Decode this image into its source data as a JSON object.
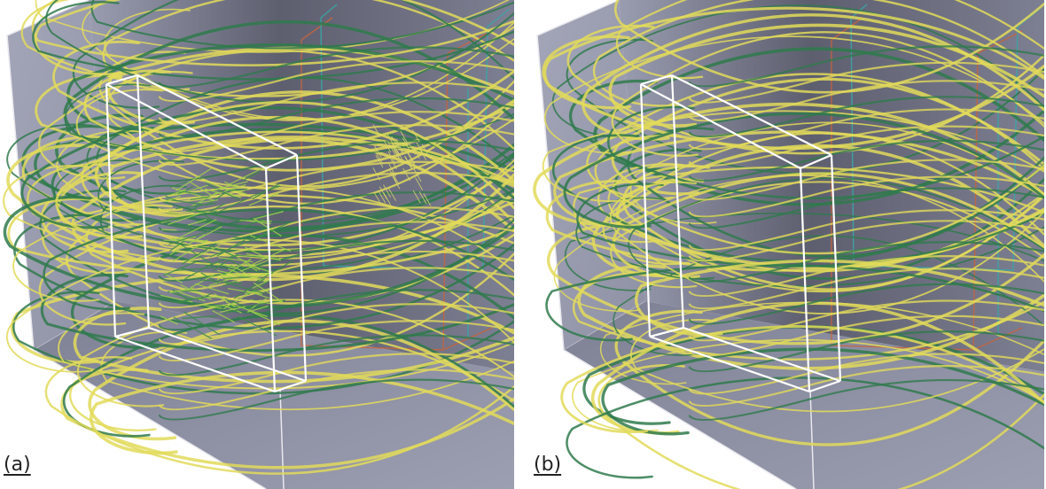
{
  "figure": {
    "panels": [
      {
        "label": "(a)",
        "variant": "dense"
      },
      {
        "label": "(b)",
        "variant": "sparse"
      }
    ],
    "colors": {
      "box_face": "#8f91a4",
      "box_edge": "#e8e8ee",
      "streamline_yellow": "#e2da5a",
      "streamline_green": "#2f7a4c",
      "inner_box_cyan": "#3aa6a6",
      "inner_box_orange": "#c8643c"
    }
  }
}
